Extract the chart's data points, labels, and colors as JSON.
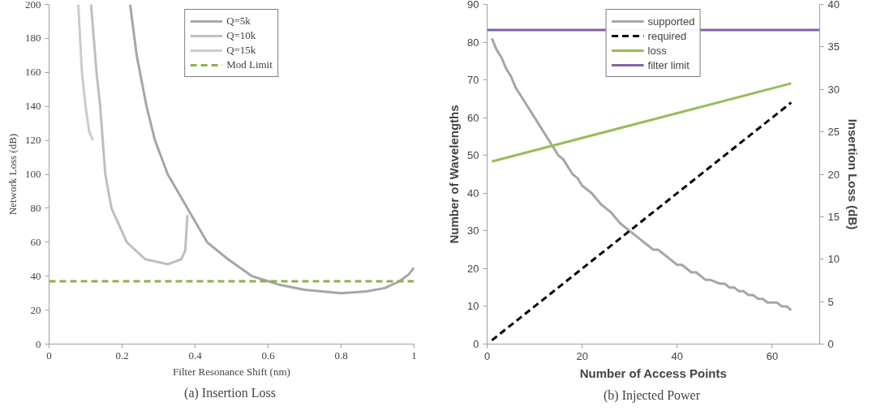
{
  "chart_data": [
    {
      "type": "line",
      "title": "(a)  Insertion Loss",
      "xlabel": "Filter Resonance Shift (nm)",
      "ylabel": "Network Loss (dB)",
      "xlim": [
        0,
        1
      ],
      "ylim": [
        0,
        200
      ],
      "xticks": [
        0,
        0.2,
        0.4,
        0.6,
        0.8,
        1
      ],
      "yticks": [
        0,
        20,
        40,
        60,
        80,
        100,
        120,
        140,
        160,
        180,
        200
      ],
      "grid": false,
      "legend": "top",
      "series": [
        {
          "name": "Q=5k",
          "color": "#a6a6a6",
          "line_style": "solid",
          "x": [
            0.222,
            0.24,
            0.267,
            0.29,
            0.325,
            0.379,
            0.433,
            0.49,
            0.556,
            0.63,
            0.7,
            0.8,
            0.87,
            0.92,
            0.96,
            0.985,
            1.0
          ],
          "values": [
            200,
            170,
            140,
            120,
            100,
            80,
            60,
            50,
            40,
            35,
            32,
            30,
            31,
            33,
            37,
            41,
            45
          ]
        },
        {
          "name": "Q=10k",
          "color": "#bfbfbf",
          "line_style": "solid",
          "x": [
            0.115,
            0.13,
            0.14,
            0.154,
            0.171,
            0.213,
            0.263,
            0.325,
            0.362,
            0.373,
            0.379
          ],
          "values": [
            200,
            160,
            140,
            100,
            80,
            60,
            50,
            47,
            50,
            55,
            76
          ]
        },
        {
          "name": "Q=15k",
          "color": "#cccccc",
          "line_style": "solid",
          "x": [
            0.08,
            0.09,
            0.1,
            0.11,
            0.12
          ],
          "values": [
            200,
            160,
            140,
            125,
            120
          ]
        },
        {
          "name": "Mod Limit",
          "color": "#8db04a",
          "line_style": "dashed",
          "x": [
            0,
            1
          ],
          "values": [
            37,
            37
          ]
        }
      ]
    },
    {
      "type": "line",
      "title": "(b)  Injected Power",
      "xlabel": "Number of Access Points",
      "ylabel": "Number of Wavelengths",
      "y2label": "Insertion Loss (dB)",
      "xlim": [
        0,
        70
      ],
      "ylim": [
        0,
        90
      ],
      "y2lim": [
        0,
        40
      ],
      "xticks": [
        0,
        20,
        40,
        60
      ],
      "yticks": [
        0,
        10,
        20,
        30,
        40,
        50,
        60,
        70,
        80,
        90
      ],
      "y2ticks": [
        0,
        5,
        10,
        15,
        20,
        25,
        30,
        35,
        40
      ],
      "grid": false,
      "legend": "top",
      "series": [
        {
          "name": "supported",
          "color": "#a6a6a6",
          "line_style": "solid",
          "x": [
            1,
            2,
            3,
            4,
            5,
            6,
            8,
            10,
            12,
            14,
            15,
            16,
            18,
            19,
            20,
            22,
            24,
            26,
            28,
            30,
            32,
            34,
            35,
            36,
            38,
            40,
            41,
            43,
            44,
            46,
            47,
            49,
            50,
            51,
            52,
            53,
            54,
            55,
            56,
            57,
            58,
            59,
            61,
            62,
            63,
            64
          ],
          "values": [
            81,
            78,
            76,
            73,
            71,
            68,
            64,
            60,
            56,
            52,
            50,
            49,
            45,
            44,
            42,
            40,
            37,
            35,
            32,
            30,
            28,
            26,
            25,
            25,
            23,
            21,
            21,
            19,
            19,
            17,
            17,
            16,
            16,
            15,
            15,
            14,
            14,
            13,
            13,
            12,
            12,
            11,
            11,
            10,
            10,
            9
          ]
        },
        {
          "name": "required",
          "color": "#000000",
          "line_style": "dashed",
          "x": [
            1,
            64
          ],
          "values": [
            1,
            64
          ]
        },
        {
          "name": "loss",
          "color": "#9bbb59",
          "line_style": "solid",
          "axis": "y2",
          "x": [
            1,
            64
          ],
          "values": [
            21.5,
            30.7
          ]
        },
        {
          "name": "filter limit",
          "color": "#8064a2",
          "line_style": "solid",
          "axis": "y2",
          "x": [
            0,
            70
          ],
          "values": [
            37,
            37
          ]
        }
      ]
    }
  ]
}
